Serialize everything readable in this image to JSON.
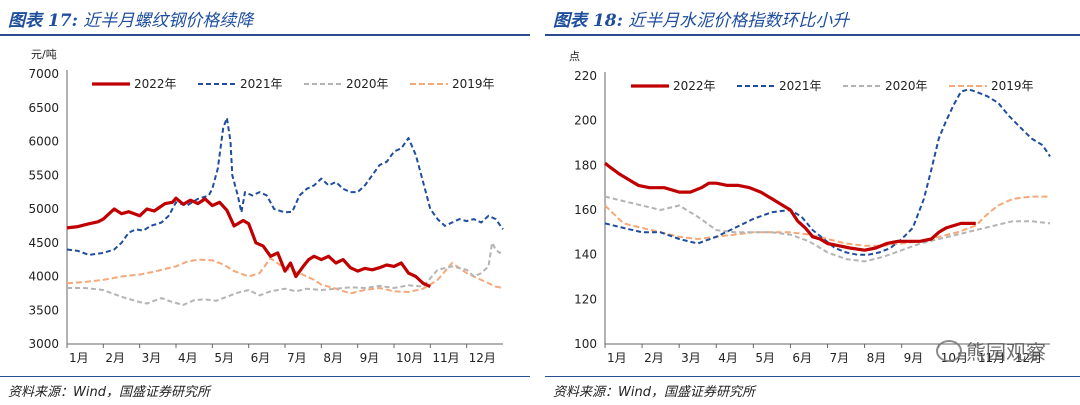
{
  "left": {
    "fig_no": "图表 17:",
    "fig_text": "近半月螺纹钢价格续降",
    "source": "资料来源：Wind，国盛证券研究所"
  },
  "right": {
    "fig_no": "图表 18:",
    "fig_text": "近半月水泥价格指数环比小升",
    "source": "资料来源：Wind，国盛证券研究所"
  },
  "watermark": "熊园观察",
  "chart_data": [
    {
      "type": "line",
      "title": "近半月螺纹钢价格续降",
      "ylabel": "元/吨",
      "ylim": [
        3000,
        7000
      ],
      "yticks": [
        3000,
        3500,
        4000,
        4500,
        5000,
        5500,
        6000,
        6500,
        7000
      ],
      "xlim": [
        1,
        13
      ],
      "xticks": [
        "1月",
        "2月",
        "3月",
        "4月",
        "5月",
        "6月",
        "7月",
        "8月",
        "9月",
        "10月",
        "11月",
        "12月"
      ],
      "series": [
        {
          "name": "2022年",
          "color": "#c00000",
          "dash": "",
          "width": 3.2,
          "x": [
            1,
            1.3,
            1.6,
            1.85,
            2,
            2.3,
            2.5,
            2.7,
            3,
            3.2,
            3.4,
            3.7,
            3.9,
            4,
            4.2,
            4.4,
            4.6,
            4.8,
            5,
            5.2,
            5.4,
            5.6,
            5.85,
            6,
            6.2,
            6.4,
            6.6,
            6.8,
            7,
            7.15,
            7.3,
            7.5,
            7.65,
            7.8,
            8,
            8.2,
            8.4,
            8.6,
            8.8,
            9,
            9.2,
            9.4,
            9.6,
            9.8,
            10,
            10.2,
            10.4,
            10.6,
            10.8,
            11
          ],
          "y": [
            4720,
            4740,
            4780,
            4810,
            4850,
            5000,
            4930,
            4960,
            4900,
            5000,
            4970,
            5080,
            5100,
            5160,
            5070,
            5130,
            5080,
            5150,
            5050,
            5100,
            4980,
            4750,
            4830,
            4780,
            4500,
            4450,
            4300,
            4350,
            4080,
            4200,
            4000,
            4150,
            4250,
            4300,
            4250,
            4300,
            4200,
            4250,
            4130,
            4080,
            4120,
            4100,
            4130,
            4170,
            4150,
            4200,
            4050,
            4000,
            3900,
            3850
          ]
        },
        {
          "name": "2021年",
          "color": "#1f4e9e",
          "dash": "5,3",
          "width": 2,
          "x": [
            1,
            1.3,
            1.6,
            2,
            2.3,
            2.5,
            2.7,
            2.9,
            3.1,
            3.3,
            3.6,
            3.8,
            4,
            4.3,
            4.6,
            4.9,
            5,
            5.15,
            5.3,
            5.4,
            5.5,
            5.55,
            5.7,
            5.8,
            5.9,
            6.1,
            6.3,
            6.5,
            6.7,
            7,
            7.2,
            7.4,
            7.6,
            7.8,
            8,
            8.2,
            8.4,
            8.6,
            8.8,
            9,
            9.2,
            9.4,
            9.6,
            9.8,
            10,
            10.2,
            10.4,
            10.6,
            10.8,
            11,
            11.2,
            11.4,
            11.6,
            11.8,
            12,
            12.2,
            12.4,
            12.6,
            12.8,
            13
          ],
          "y": [
            4400,
            4380,
            4320,
            4350,
            4400,
            4500,
            4650,
            4700,
            4680,
            4750,
            4800,
            4900,
            5100,
            5050,
            5150,
            5200,
            5300,
            5600,
            6200,
            6350,
            6000,
            5500,
            5200,
            4950,
            5250,
            5200,
            5250,
            5200,
            5000,
            4950,
            4960,
            5200,
            5300,
            5350,
            5450,
            5350,
            5400,
            5300,
            5250,
            5250,
            5350,
            5500,
            5650,
            5700,
            5850,
            5900,
            6050,
            5800,
            5400,
            5000,
            4850,
            4750,
            4800,
            4850,
            4820,
            4850,
            4800,
            4900,
            4850,
            4700
          ]
        },
        {
          "name": "2020年",
          "color": "#b4b4b4",
          "dash": "5,3",
          "width": 2,
          "x": [
            1,
            1.5,
            2,
            2.5,
            3,
            3.2,
            3.6,
            3.9,
            4.2,
            4.5,
            4.8,
            5.1,
            5.4,
            5.7,
            6,
            6.3,
            6.6,
            7,
            7.3,
            7.6,
            8,
            8.4,
            8.8,
            9.2,
            9.6,
            10,
            10.4,
            10.8,
            11.2,
            11.6,
            12,
            12.2,
            12.4,
            12.6,
            12.7,
            12.8,
            12.9,
            13
          ],
          "y": [
            3830,
            3830,
            3800,
            3700,
            3620,
            3600,
            3680,
            3620,
            3580,
            3650,
            3660,
            3640,
            3700,
            3760,
            3800,
            3720,
            3780,
            3820,
            3780,
            3820,
            3800,
            3820,
            3840,
            3830,
            3860,
            3830,
            3870,
            3850,
            4100,
            4150,
            4100,
            4000,
            4050,
            4150,
            4500,
            4400,
            4350,
            4380
          ]
        },
        {
          "name": "2019年",
          "color": "#f4a97a",
          "dash": "6,3",
          "width": 2,
          "x": [
            1,
            1.5,
            2,
            2.5,
            3,
            3.3,
            3.6,
            4,
            4.3,
            4.6,
            5,
            5.3,
            5.6,
            6,
            6.3,
            6.6,
            7,
            7.4,
            7.8,
            8,
            8.4,
            8.8,
            9.2,
            9.6,
            10,
            10.4,
            10.8,
            11.2,
            11.6,
            12,
            12.4,
            12.8,
            13
          ],
          "y": [
            3900,
            3920,
            3950,
            4000,
            4030,
            4060,
            4100,
            4150,
            4220,
            4250,
            4240,
            4180,
            4080,
            4000,
            4050,
            4270,
            4120,
            4050,
            3950,
            3880,
            3820,
            3750,
            3800,
            3830,
            3780,
            3770,
            3820,
            3950,
            4200,
            4050,
            3950,
            3850,
            3830
          ]
        }
      ]
    },
    {
      "type": "line",
      "title": "近半月水泥价格指数环比小升",
      "ylabel": "点",
      "ylim": [
        100,
        220
      ],
      "yticks": [
        100,
        120,
        140,
        160,
        180,
        200,
        220
      ],
      "xlim": [
        1,
        13
      ],
      "xticks": [
        "1月",
        "2月",
        "3月",
        "4月",
        "5月",
        "6月",
        "7月",
        "8月",
        "9月",
        "10月",
        "11月",
        "12月"
      ],
      "series": [
        {
          "name": "2022年",
          "color": "#c00000",
          "dash": "",
          "width": 3.2,
          "x": [
            1,
            1.15,
            1.4,
            1.6,
            1.9,
            2.2,
            2.6,
            3,
            3.3,
            3.6,
            3.8,
            4,
            4.3,
            4.6,
            4.9,
            5.2,
            5.5,
            5.8,
            6,
            6.2,
            6.4,
            6.6,
            6.8,
            7,
            7.3,
            7.6,
            8,
            8.3,
            8.6,
            8.9,
            9.2,
            9.5,
            9.8,
            10,
            10.2,
            10.4,
            10.6,
            10.8,
            11
          ],
          "y": [
            181,
            179,
            176,
            174,
            171,
            170,
            170,
            168,
            168,
            170,
            172,
            172,
            171,
            171,
            170,
            168,
            165,
            162,
            160,
            155,
            152,
            148,
            147,
            145,
            144,
            143,
            142,
            143,
            145,
            146,
            146,
            146,
            147,
            150,
            152,
            153,
            154,
            154,
            154
          ]
        },
        {
          "name": "2021年",
          "color": "#1f4e9e",
          "dash": "5,3",
          "width": 2,
          "x": [
            1,
            1.5,
            2,
            2.5,
            3,
            3.5,
            4,
            4.5,
            5,
            5.5,
            6,
            6.3,
            6.6,
            6.9,
            7.2,
            7.5,
            7.8,
            8.1,
            8.4,
            8.7,
            9,
            9.3,
            9.6,
            9.8,
            10,
            10.2,
            10.4,
            10.6,
            10.8,
            11,
            11.3,
            11.6,
            11.9,
            12.2,
            12.5,
            12.8,
            13
          ],
          "y": [
            154,
            152,
            150,
            150,
            147,
            145,
            148,
            152,
            156,
            159,
            160,
            157,
            151,
            147,
            143,
            141,
            140,
            140,
            141,
            143,
            147,
            152,
            165,
            178,
            192,
            200,
            207,
            213,
            214,
            213,
            211,
            208,
            202,
            197,
            192,
            189,
            184
          ]
        },
        {
          "name": "2020年",
          "color": "#b4b4b4",
          "dash": "5,3",
          "width": 2,
          "x": [
            1,
            1.5,
            2,
            2.5,
            3,
            3.5,
            4,
            4.5,
            5,
            5.5,
            6,
            6.5,
            7,
            7.5,
            8,
            8.5,
            9,
            9.5,
            10,
            10.5,
            11,
            11.5,
            12,
            12.5,
            13
          ],
          "y": [
            166,
            164,
            162,
            160,
            162,
            157,
            151,
            150,
            150,
            150,
            149,
            146,
            141,
            138,
            137,
            139,
            142,
            145,
            147,
            149,
            151,
            153,
            155,
            155,
            154
          ]
        },
        {
          "name": "2019年",
          "color": "#f4a97a",
          "dash": "6,3",
          "width": 2,
          "x": [
            1,
            1.5,
            2,
            2.5,
            3,
            3.5,
            4,
            4.5,
            5,
            5.5,
            6,
            6.5,
            7,
            7.5,
            8,
            8.5,
            9,
            9.5,
            10,
            10.5,
            11,
            11.3,
            11.6,
            12,
            12.5,
            13
          ],
          "y": [
            162,
            154,
            152,
            150,
            148,
            147,
            148,
            149,
            150,
            150,
            150,
            149,
            147,
            145,
            144,
            144,
            145,
            146,
            148,
            150,
            153,
            158,
            162,
            165,
            166,
            166
          ]
        }
      ]
    }
  ]
}
